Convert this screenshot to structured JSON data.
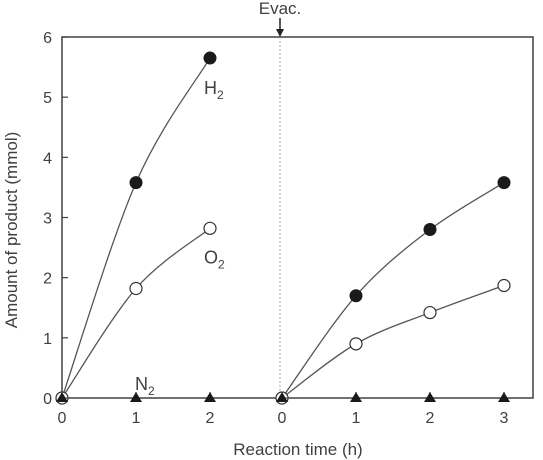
{
  "chart_data": {
    "type": "line",
    "ylabel": "Amount of product (mmol)",
    "xlabel": "Reaction time (h)",
    "ylim": [
      0,
      6
    ],
    "y_ticks": [
      "0",
      "1",
      "2",
      "3",
      "4",
      "5",
      "6"
    ],
    "annotation": "Evac.",
    "grid": false,
    "panels": [
      {
        "name": "first run",
        "xlim": [
          0,
          2
        ],
        "x_ticks": [
          "0",
          "1",
          "2"
        ],
        "series": [
          {
            "label_main": "H",
            "label_sub": "2",
            "marker": "filled-circle",
            "x": [
              0,
              1,
              2
            ],
            "values": [
              0,
              3.58,
              5.65
            ]
          },
          {
            "label_main": "O",
            "label_sub": "2",
            "marker": "open-circle",
            "x": [
              0,
              1,
              2
            ],
            "values": [
              0,
              1.82,
              2.82
            ]
          },
          {
            "label_main": "N",
            "label_sub": "2",
            "marker": "filled-triangle",
            "x": [
              0,
              1,
              2
            ],
            "values": [
              0,
              0,
              0
            ]
          }
        ]
      },
      {
        "name": "after evacuation",
        "xlim": [
          0,
          3
        ],
        "x_ticks": [
          "0",
          "1",
          "2",
          "3"
        ],
        "series": [
          {
            "marker": "filled-circle",
            "x": [
              0,
              1,
              2,
              3
            ],
            "values": [
              0,
              1.7,
              2.8,
              3.58
            ]
          },
          {
            "marker": "open-circle",
            "x": [
              0,
              1,
              2,
              3
            ],
            "values": [
              0,
              0.9,
              1.42,
              1.87
            ]
          },
          {
            "marker": "filled-triangle",
            "x": [
              0,
              1,
              2,
              3
            ],
            "values": [
              0,
              0,
              0,
              0
            ]
          }
        ]
      }
    ],
    "colors": {
      "line": "#555555",
      "text": "#404040",
      "frame": "#404040"
    }
  }
}
